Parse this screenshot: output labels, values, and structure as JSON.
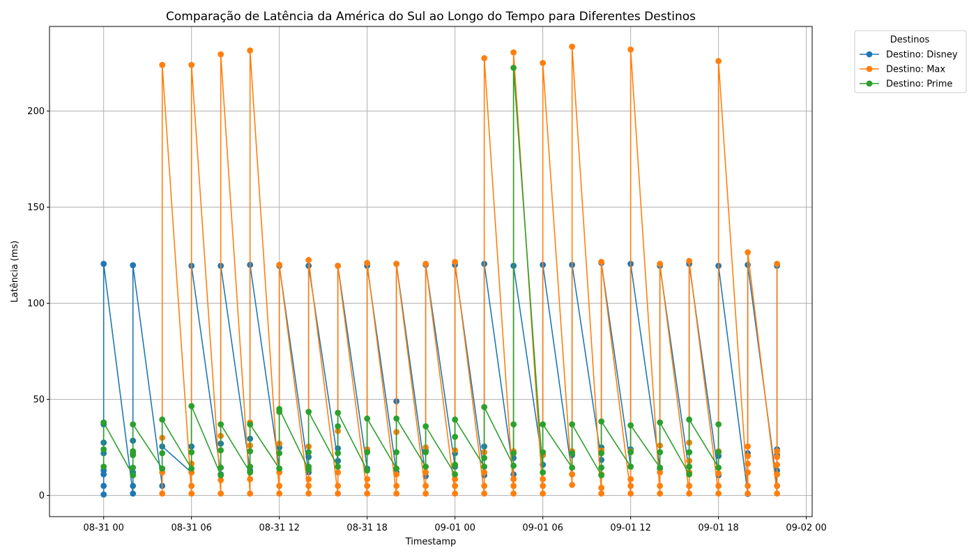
{
  "chart_data": {
    "type": "line",
    "title": "Comparação de Latência da América do Sul ao Longo do Tempo para Diferentes Destinos",
    "xlabel": "Timestamp",
    "ylabel": "Latência (ms)",
    "ylim": [
      -11,
      244
    ],
    "xlim_hours": [
      -3.7,
      48.4
    ],
    "yticks": [
      0,
      50,
      100,
      150,
      200
    ],
    "xticks": [
      {
        "h": 0,
        "label": "08-31 00"
      },
      {
        "h": 6,
        "label": "08-31 06"
      },
      {
        "h": 12,
        "label": "08-31 12"
      },
      {
        "h": 18,
        "label": "08-31 18"
      },
      {
        "h": 24,
        "label": "09-01 00"
      },
      {
        "h": 30,
        "label": "09-01 06"
      },
      {
        "h": 36,
        "label": "09-01 12"
      },
      {
        "h": 42,
        "label": "09-01 18"
      },
      {
        "h": 48,
        "label": "09-02 00"
      }
    ],
    "grid": true,
    "legend": {
      "title": "Destinos",
      "placement": "outside-top-right"
    },
    "series": [
      {
        "name": "Destino: Disney",
        "color": "#1f77b4",
        "points": [
          [
            0,
            0.5
          ],
          [
            0,
            5
          ],
          [
            0,
            11
          ],
          [
            0,
            13
          ],
          [
            0,
            22
          ],
          [
            0,
            27.5
          ],
          [
            0,
            37
          ],
          [
            0,
            120.5
          ],
          [
            2,
            1
          ],
          [
            2,
            5
          ],
          [
            2,
            12
          ],
          [
            2,
            22
          ],
          [
            2,
            28.5
          ],
          [
            2,
            119.8
          ],
          [
            4,
            5
          ],
          [
            4,
            14
          ],
          [
            4,
            25.5
          ],
          [
            6,
            12
          ],
          [
            6,
            25.5
          ],
          [
            6,
            119.5
          ],
          [
            8,
            11
          ],
          [
            8,
            27
          ],
          [
            8,
            119.5
          ],
          [
            10,
            13
          ],
          [
            10,
            29.5
          ],
          [
            10,
            120
          ],
          [
            12,
            14
          ],
          [
            12,
            25
          ],
          [
            12,
            119.5
          ],
          [
            14,
            12
          ],
          [
            14,
            20
          ],
          [
            14,
            119.5
          ],
          [
            16,
            18
          ],
          [
            16,
            24.5
          ],
          [
            16,
            119.5
          ],
          [
            18,
            14
          ],
          [
            18,
            23.5
          ],
          [
            18,
            119.5
          ],
          [
            20,
            12
          ],
          [
            20,
            49
          ],
          [
            20,
            120.5
          ],
          [
            22,
            10
          ],
          [
            22,
            23.5
          ],
          [
            22,
            120
          ],
          [
            24,
            15
          ],
          [
            24,
            22
          ],
          [
            24,
            120
          ],
          [
            26,
            10.5
          ],
          [
            26,
            25.5
          ],
          [
            26,
            120.5
          ],
          [
            28,
            11
          ],
          [
            28,
            19.5
          ],
          [
            28,
            119.5
          ],
          [
            30,
            16
          ],
          [
            30,
            21
          ],
          [
            30,
            120
          ],
          [
            32,
            11
          ],
          [
            32,
            21
          ],
          [
            32,
            120
          ],
          [
            34,
            18.5
          ],
          [
            34,
            25
          ],
          [
            34,
            121
          ],
          [
            36,
            15
          ],
          [
            36,
            24
          ],
          [
            36,
            120.5
          ],
          [
            38,
            14
          ],
          [
            38,
            22.5
          ],
          [
            38,
            119.5
          ],
          [
            40,
            12
          ],
          [
            40,
            22.5
          ],
          [
            40,
            120.5
          ],
          [
            42,
            10.5
          ],
          [
            42,
            20.5
          ],
          [
            42,
            119.5
          ],
          [
            44,
            0.8
          ],
          [
            44,
            22
          ],
          [
            44,
            120
          ],
          [
            46,
            5
          ],
          [
            46,
            13
          ],
          [
            46,
            21
          ],
          [
            46,
            24
          ],
          [
            46,
            119.5
          ]
        ]
      },
      {
        "name": "Destino: Max",
        "color": "#ff7f0e",
        "points": [
          [
            4,
            1
          ],
          [
            4,
            12
          ],
          [
            4,
            30
          ],
          [
            4,
            224
          ],
          [
            6,
            1
          ],
          [
            6,
            5
          ],
          [
            6,
            12
          ],
          [
            6,
            16.5
          ],
          [
            6,
            224
          ],
          [
            8,
            1
          ],
          [
            8,
            8
          ],
          [
            8,
            31
          ],
          [
            8,
            229.5
          ],
          [
            10,
            1
          ],
          [
            10,
            8.5
          ],
          [
            10,
            26
          ],
          [
            10,
            38
          ],
          [
            10,
            231.5
          ],
          [
            12,
            1
          ],
          [
            12,
            5
          ],
          [
            12,
            12
          ],
          [
            12,
            27
          ],
          [
            12,
            120
          ],
          [
            14,
            1
          ],
          [
            14,
            5
          ],
          [
            14,
            8.5
          ],
          [
            14,
            25.5
          ],
          [
            14,
            122.5
          ],
          [
            16,
            1
          ],
          [
            16,
            5
          ],
          [
            16,
            12
          ],
          [
            16,
            33.5
          ],
          [
            16,
            119.5
          ],
          [
            18,
            1
          ],
          [
            18,
            5
          ],
          [
            18,
            8.5
          ],
          [
            18,
            24
          ],
          [
            18,
            121
          ],
          [
            20,
            1
          ],
          [
            20,
            5
          ],
          [
            20,
            11
          ],
          [
            20,
            33
          ],
          [
            20,
            120.5
          ],
          [
            22,
            1
          ],
          [
            22,
            5
          ],
          [
            22,
            12
          ],
          [
            22,
            25
          ],
          [
            22,
            120.5
          ],
          [
            24,
            1
          ],
          [
            24,
            5
          ],
          [
            24,
            8.5
          ],
          [
            24,
            23.5
          ],
          [
            24,
            121.5
          ],
          [
            26,
            1
          ],
          [
            26,
            5
          ],
          [
            26,
            12
          ],
          [
            26,
            22.5
          ],
          [
            26,
            227.5
          ],
          [
            28,
            1
          ],
          [
            28,
            5
          ],
          [
            28,
            8.5
          ],
          [
            28,
            23
          ],
          [
            28,
            230.5
          ],
          [
            30,
            1
          ],
          [
            30,
            5
          ],
          [
            30,
            8.5
          ],
          [
            30,
            21
          ],
          [
            30,
            225
          ],
          [
            32,
            5.5
          ],
          [
            32,
            11
          ],
          [
            32,
            23
          ],
          [
            32,
            233.5
          ],
          [
            34,
            1
          ],
          [
            34,
            4
          ],
          [
            34,
            11
          ],
          [
            34,
            23.5
          ],
          [
            34,
            121.5
          ],
          [
            36,
            1
          ],
          [
            36,
            5
          ],
          [
            36,
            8.5
          ],
          [
            36,
            23
          ],
          [
            36,
            232
          ],
          [
            38,
            1
          ],
          [
            38,
            5
          ],
          [
            38,
            12
          ],
          [
            38,
            26
          ],
          [
            38,
            120.5
          ],
          [
            40,
            1
          ],
          [
            40,
            5
          ],
          [
            40,
            12
          ],
          [
            40,
            18
          ],
          [
            40,
            27.5
          ],
          [
            40,
            122
          ],
          [
            42,
            1
          ],
          [
            42,
            5
          ],
          [
            42,
            11.5
          ],
          [
            42,
            23
          ],
          [
            42,
            226
          ],
          [
            44,
            1
          ],
          [
            44,
            5
          ],
          [
            44,
            12
          ],
          [
            44,
            16.5
          ],
          [
            44,
            20.5
          ],
          [
            44,
            25.5
          ],
          [
            44,
            126.5
          ],
          [
            46,
            1
          ],
          [
            46,
            5
          ],
          [
            46,
            11
          ],
          [
            46,
            16
          ],
          [
            46,
            20
          ],
          [
            46,
            23
          ],
          [
            46,
            120.5
          ]
        ]
      },
      {
        "name": "Destino: Prime",
        "color": "#2ca02c",
        "points": [
          [
            0,
            15
          ],
          [
            0,
            24
          ],
          [
            0,
            38
          ],
          [
            2,
            10.5
          ],
          [
            2,
            14.5
          ],
          [
            2,
            21
          ],
          [
            2,
            23
          ],
          [
            2,
            37
          ],
          [
            4,
            14
          ],
          [
            4,
            22
          ],
          [
            4,
            39.5
          ],
          [
            6,
            14
          ],
          [
            6,
            22.5
          ],
          [
            6,
            46.5
          ],
          [
            8,
            10.5
          ],
          [
            8,
            14.5
          ],
          [
            8,
            23.5
          ],
          [
            8,
            37
          ],
          [
            10,
            12
          ],
          [
            10,
            15
          ],
          [
            10,
            23
          ],
          [
            10,
            37
          ],
          [
            12,
            14
          ],
          [
            12,
            22
          ],
          [
            12,
            43.5
          ],
          [
            12,
            45
          ],
          [
            14,
            13.5
          ],
          [
            14,
            15
          ],
          [
            14,
            22.5
          ],
          [
            14,
            43.5
          ],
          [
            16,
            15
          ],
          [
            16,
            22
          ],
          [
            16,
            36
          ],
          [
            16,
            43
          ],
          [
            18,
            13
          ],
          [
            18,
            22.5
          ],
          [
            18,
            40
          ],
          [
            20,
            14
          ],
          [
            20,
            22.5
          ],
          [
            20,
            40
          ],
          [
            22,
            15
          ],
          [
            22,
            22.5
          ],
          [
            22,
            36
          ],
          [
            24,
            11
          ],
          [
            24,
            16
          ],
          [
            24,
            30.5
          ],
          [
            24,
            39.5
          ],
          [
            26,
            15
          ],
          [
            26,
            19.5
          ],
          [
            26,
            46
          ],
          [
            28,
            15.5
          ],
          [
            28,
            22
          ],
          [
            28,
            37
          ],
          [
            28,
            222.5
          ],
          [
            30,
            12
          ],
          [
            30,
            22.5
          ],
          [
            30,
            37
          ],
          [
            32,
            14.5
          ],
          [
            32,
            22
          ],
          [
            32,
            37
          ],
          [
            34,
            10.5
          ],
          [
            34,
            14.5
          ],
          [
            34,
            22
          ],
          [
            34,
            38.5
          ],
          [
            36,
            15
          ],
          [
            36,
            22.5
          ],
          [
            36,
            36.5
          ],
          [
            38,
            14.5
          ],
          [
            38,
            22.5
          ],
          [
            38,
            38
          ],
          [
            40,
            11
          ],
          [
            40,
            15
          ],
          [
            40,
            22.5
          ],
          [
            40,
            39.5
          ],
          [
            42,
            14.5
          ],
          [
            42,
            22.5
          ],
          [
            42,
            37
          ]
        ]
      }
    ]
  }
}
